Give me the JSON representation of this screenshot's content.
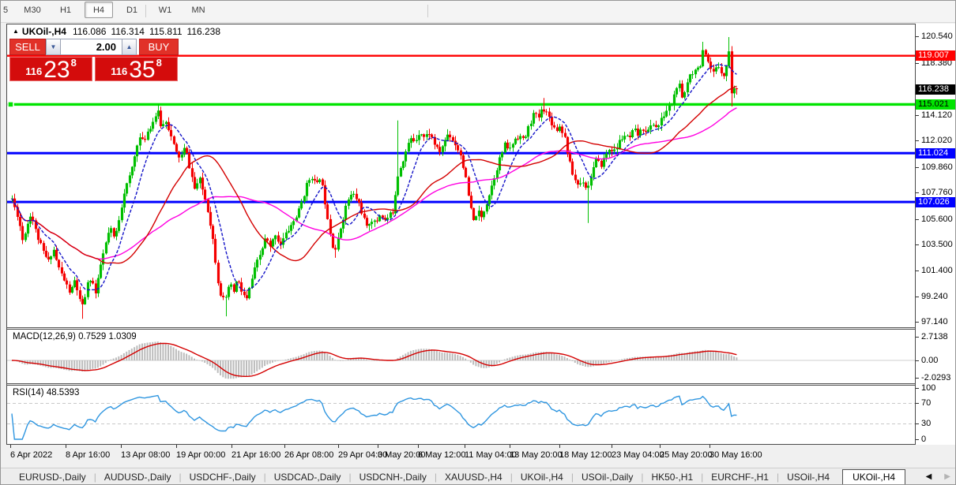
{
  "toolbar": {
    "timeframes": [
      "5",
      "M30",
      "H1",
      "H4",
      "D1",
      "W1",
      "MN"
    ],
    "active": "H4"
  },
  "header": {
    "marker": "▲",
    "symbol": "UKOil-,H4",
    "open": "116.086",
    "high": "116.314",
    "low": "115.811",
    "close": "116.238"
  },
  "trade_panel": {
    "sell_label": "SELL",
    "buy_label": "BUY",
    "volume": "2.00",
    "spin_up": "▲",
    "spin_down": "▼",
    "sell_price": {
      "prefix": "116",
      "big": "23",
      "sup": "8"
    },
    "buy_price": {
      "prefix": "116",
      "big": "35",
      "sup": "8"
    }
  },
  "chart": {
    "colors": {
      "bull": "#00bf00",
      "bear": "#f40000",
      "ma_fast": "#1414c8",
      "ma_mid": "#d40000",
      "ma_slow": "#ff00e1",
      "hist": "#bcbcbc",
      "rsi_line": "#2f96e0",
      "zero_line": "#cfcfcf",
      "dashed_level": "#c8c8c8"
    },
    "y_ticks": [
      "120.540",
      "118.380",
      "114.120",
      "112.020",
      "109.860",
      "107.760",
      "105.600",
      "103.500",
      "101.400",
      "99.240",
      "97.140"
    ],
    "badges": [
      {
        "label": "119.007",
        "bg": "#ff0000",
        "fg": "#ffffff"
      },
      {
        "label": "116.238",
        "bg": "#000000",
        "fg": "#ffffff"
      },
      {
        "label": "115.021",
        "bg": "#00e400",
        "fg": "#000000"
      },
      {
        "label": "111.024",
        "bg": "#0000ff",
        "fg": "#ffffff"
      },
      {
        "label": "107.026",
        "bg": "#0000ff",
        "fg": "#ffffff"
      }
    ],
    "levels": [
      {
        "price": 119.007,
        "color": "#ff0000",
        "thickness": 2.4,
        "marker": true
      },
      {
        "price": 115.021,
        "color": "#00e400",
        "thickness": 3.4,
        "marker": true
      },
      {
        "price": 111.024,
        "color": "#0000ff",
        "thickness": 3.0,
        "marker": false
      },
      {
        "price": 107.026,
        "color": "#0000ff",
        "thickness": 3.0,
        "marker": false
      }
    ],
    "x_labels": [
      {
        "t": "6 Apr 2022",
        "x": 5
      },
      {
        "t": "8 Apr 16:00",
        "x": 75
      },
      {
        "t": "13 Apr 08:00",
        "x": 145
      },
      {
        "t": "19 Apr 00:00",
        "x": 215
      },
      {
        "t": "21 Apr 16:00",
        "x": 285
      },
      {
        "t": "26 Apr 08:00",
        "x": 352
      },
      {
        "t": "29 Apr 04:00",
        "x": 420
      },
      {
        "t": "3 May 20:00",
        "x": 470
      },
      {
        "t": "6 May 12:00",
        "x": 521
      },
      {
        "t": "11 May 04:00",
        "x": 580
      },
      {
        "t": "13 May 20:00",
        "x": 637
      },
      {
        "t": "18 May 12:00",
        "x": 700
      },
      {
        "t": "23 May 04:00",
        "x": 766
      },
      {
        "t": "25 May 20:00",
        "x": 827
      },
      {
        "t": "30 May 16:00",
        "x": 890
      }
    ],
    "price_path": [
      [
        6,
        107.3
      ],
      [
        10,
        106.4
      ],
      [
        14,
        105.8
      ],
      [
        19,
        103.9
      ],
      [
        24,
        104.9
      ],
      [
        30,
        106.2
      ],
      [
        36,
        104.6
      ],
      [
        44,
        103.1
      ],
      [
        52,
        102.1
      ],
      [
        58,
        103.3
      ],
      [
        64,
        101.8
      ],
      [
        72,
        100.6
      ],
      [
        80,
        99.5
      ],
      [
        86,
        100.7
      ],
      [
        91,
        99.0
      ],
      [
        96,
        98.3
      ],
      [
        100,
        100.0
      ],
      [
        106,
        100.9
      ],
      [
        112,
        99.4
      ],
      [
        118,
        101.8
      ],
      [
        124,
        103.4
      ],
      [
        130,
        104.9
      ],
      [
        136,
        103.9
      ],
      [
        142,
        105.9
      ],
      [
        148,
        107.9
      ],
      [
        154,
        108.9
      ],
      [
        160,
        110.4
      ],
      [
        166,
        112.4
      ],
      [
        172,
        111.9
      ],
      [
        178,
        112.9
      ],
      [
        184,
        113.6
      ],
      [
        190,
        114.5
      ],
      [
        195,
        113.1
      ],
      [
        201,
        113.8
      ],
      [
        207,
        112.4
      ],
      [
        213,
        111.1
      ],
      [
        219,
        110.6
      ],
      [
        225,
        111.5
      ],
      [
        231,
        109.8
      ],
      [
        237,
        108.1
      ],
      [
        243,
        108.9
      ],
      [
        249,
        107.6
      ],
      [
        255,
        106.0
      ],
      [
        261,
        103.6
      ],
      [
        266,
        100.8
      ],
      [
        271,
        99.2
      ],
      [
        276,
        98.8
      ],
      [
        281,
        100.4
      ],
      [
        286,
        99.6
      ],
      [
        291,
        100.7
      ],
      [
        297,
        99.6
      ],
      [
        303,
        99.0
      ],
      [
        309,
        100.6
      ],
      [
        315,
        101.9
      ],
      [
        321,
        102.9
      ],
      [
        327,
        104.1
      ],
      [
        333,
        103.2
      ],
      [
        339,
        104.5
      ],
      [
        345,
        103.5
      ],
      [
        351,
        104.2
      ],
      [
        357,
        104.9
      ],
      [
        363,
        105.5
      ],
      [
        369,
        106.3
      ],
      [
        375,
        107.6
      ],
      [
        381,
        108.8
      ],
      [
        386,
        109.2
      ],
      [
        391,
        108.2
      ],
      [
        396,
        109.2
      ],
      [
        401,
        107.4
      ],
      [
        406,
        105.6
      ],
      [
        411,
        103.6
      ],
      [
        416,
        103.1
      ],
      [
        421,
        104.7
      ],
      [
        427,
        106.3
      ],
      [
        433,
        107.5
      ],
      [
        439,
        107.6
      ],
      [
        445,
        106.9
      ],
      [
        450,
        105.9
      ],
      [
        455,
        104.8
      ],
      [
        460,
        105.7
      ],
      [
        466,
        105.2
      ],
      [
        472,
        106.1
      ],
      [
        478,
        105.5
      ],
      [
        484,
        105.9
      ],
      [
        489,
        106.4
      ],
      [
        493,
        109.0
      ],
      [
        498,
        110.0
      ],
      [
        504,
        111.1
      ],
      [
        510,
        112.2
      ],
      [
        516,
        112.0
      ],
      [
        522,
        112.9
      ],
      [
        528,
        112.3
      ],
      [
        534,
        112.7
      ],
      [
        540,
        111.9
      ],
      [
        546,
        111.0
      ],
      [
        552,
        111.8
      ],
      [
        558,
        112.7
      ],
      [
        564,
        112.1
      ],
      [
        570,
        111.4
      ],
      [
        575,
        110.7
      ],
      [
        580,
        108.9
      ],
      [
        585,
        106.9
      ],
      [
        590,
        105.4
      ],
      [
        595,
        106.3
      ],
      [
        600,
        105.7
      ],
      [
        606,
        106.9
      ],
      [
        612,
        108.1
      ],
      [
        618,
        109.5
      ],
      [
        624,
        110.7
      ],
      [
        630,
        111.7
      ],
      [
        636,
        111.3
      ],
      [
        642,
        112.2
      ],
      [
        648,
        112.5
      ],
      [
        654,
        112.0
      ],
      [
        660,
        113.2
      ],
      [
        666,
        114.2
      ],
      [
        672,
        113.9
      ],
      [
        678,
        114.8
      ],
      [
        683,
        114.3
      ],
      [
        688,
        113.7
      ],
      [
        694,
        112.9
      ],
      [
        700,
        113.3
      ],
      [
        706,
        112.2
      ],
      [
        711,
        110.4
      ],
      [
        717,
        109.0
      ],
      [
        723,
        108.4
      ],
      [
        729,
        108.8
      ],
      [
        734,
        108.0
      ],
      [
        739,
        109.3
      ],
      [
        745,
        110.4
      ],
      [
        751,
        110.0
      ],
      [
        757,
        110.8
      ],
      [
        763,
        111.5
      ],
      [
        769,
        111.1
      ],
      [
        775,
        112.0
      ],
      [
        781,
        112.5
      ],
      [
        787,
        112.1
      ],
      [
        793,
        112.9
      ],
      [
        799,
        112.5
      ],
      [
        805,
        113.1
      ],
      [
        811,
        112.8
      ],
      [
        817,
        113.5
      ],
      [
        823,
        113.1
      ],
      [
        829,
        113.9
      ],
      [
        835,
        114.6
      ],
      [
        841,
        115.1
      ],
      [
        846,
        116.1
      ],
      [
        850,
        117.0
      ],
      [
        853,
        115.2
      ],
      [
        857,
        115.9
      ],
      [
        861,
        116.9
      ],
      [
        865,
        117.9
      ],
      [
        869,
        117.5
      ],
      [
        873,
        118.3
      ],
      [
        877,
        118.1
      ],
      [
        881,
        119.4
      ],
      [
        885,
        118.7
      ],
      [
        889,
        117.9
      ],
      [
        893,
        117.5
      ],
      [
        897,
        117.9
      ],
      [
        901,
        118.2
      ],
      [
        905,
        117.6
      ],
      [
        909,
        117.3
      ],
      [
        913,
        119.9
      ],
      [
        917,
        115.9
      ],
      [
        921,
        116.4
      ],
      [
        925,
        115.9
      ]
    ],
    "wick_overrides": [
      {
        "x": 96,
        "low": 97.45
      },
      {
        "x": 190,
        "high": 115.05
      },
      {
        "x": 276,
        "low": 97.65
      },
      {
        "x": 416,
        "low": 102.45
      },
      {
        "x": 493,
        "high": 113.7
      },
      {
        "x": 678,
        "high": 115.55
      },
      {
        "x": 734,
        "low": 105.3
      },
      {
        "x": 881,
        "high": 120.15
      },
      {
        "x": 913,
        "high": 120.54
      },
      {
        "x": 917,
        "low": 114.85
      }
    ]
  },
  "macd": {
    "label": "MACD(12,26,9) 0.7529 1.0309",
    "axis": [
      "2.7138",
      "0.00",
      "-2.0293"
    ]
  },
  "rsi": {
    "label": "RSI(14) 48.5393",
    "axis": [
      "100",
      "70",
      "30",
      "0"
    ]
  },
  "tabs": {
    "items": [
      "EURUSD-,Daily",
      "AUDUSD-,Daily",
      "USDCHF-,Daily",
      "USDCAD-,Daily",
      "USDCNH-,Daily",
      "XAUUSD-,H4",
      "UKOil-,H4",
      "USOil-,Daily",
      "HK50-,H1",
      "EURCHF-,H1",
      "USOil-,H4",
      "UKOil-,H4"
    ],
    "active_index": 11,
    "scroll_left": "◀",
    "scroll_right": "▶"
  }
}
